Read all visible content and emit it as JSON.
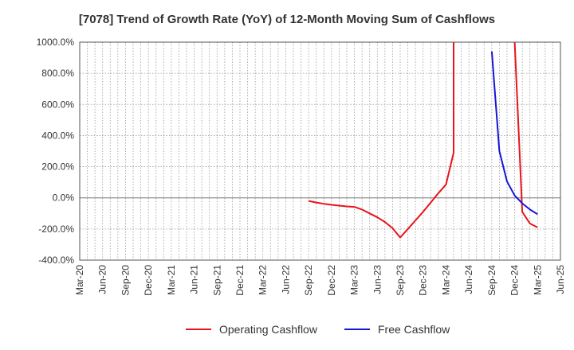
{
  "chart_data": {
    "type": "line",
    "title": "[7078]  Trend of Growth Rate (YoY) of 12-Month Moving Sum of Cashflows",
    "xlabel": "",
    "ylabel": "",
    "ylim": [
      -400,
      1000
    ],
    "grid": true,
    "legend_position": "bottom",
    "y_ticks": [
      "1000.0%",
      "800.0%",
      "600.0%",
      "400.0%",
      "200.0%",
      "0.0%",
      "-200.0%",
      "-400.0%"
    ],
    "y_tick_values": [
      1000,
      800,
      600,
      400,
      200,
      0,
      -200,
      -400
    ],
    "x_ticks": [
      "Mar-20",
      "Jun-20",
      "Sep-20",
      "Dec-20",
      "Mar-21",
      "Jun-21",
      "Sep-21",
      "Dec-21",
      "Mar-22",
      "Jun-22",
      "Sep-22",
      "Dec-22",
      "Mar-23",
      "Jun-23",
      "Sep-23",
      "Dec-23",
      "Mar-24",
      "Jun-24",
      "Sep-24",
      "Dec-24",
      "Mar-25",
      "Jun-25"
    ],
    "x_months": [
      "2020-03",
      "2020-04",
      "2020-05",
      "2020-06",
      "2020-07",
      "2020-08",
      "2020-09",
      "2020-10",
      "2020-11",
      "2020-12",
      "2021-01",
      "2021-02",
      "2021-03",
      "2021-04",
      "2021-05",
      "2021-06",
      "2021-07",
      "2021-08",
      "2021-09",
      "2021-10",
      "2021-11",
      "2021-12",
      "2022-01",
      "2022-02",
      "2022-03",
      "2022-04",
      "2022-05",
      "2022-06",
      "2022-07",
      "2022-08",
      "2022-09",
      "2022-10",
      "2022-11",
      "2022-12",
      "2023-01",
      "2023-02",
      "2023-03",
      "2023-04",
      "2023-05",
      "2023-06",
      "2023-07",
      "2023-08",
      "2023-09",
      "2023-10",
      "2023-11",
      "2023-12",
      "2024-01",
      "2024-02",
      "2024-03",
      "2024-04",
      "2024-05",
      "2024-06",
      "2024-07",
      "2024-08",
      "2024-09",
      "2024-10",
      "2024-11",
      "2024-12",
      "2025-01",
      "2025-02",
      "2025-03",
      "2025-04",
      "2025-05",
      "2025-06"
    ],
    "series": [
      {
        "name": "Operating Cashflow",
        "color": "#e8141c",
        "points": [
          [
            "2022-09",
            -20
          ],
          [
            "2022-10",
            -30
          ],
          [
            "2022-11",
            -38
          ],
          [
            "2022-12",
            -45
          ],
          [
            "2023-01",
            -50
          ],
          [
            "2023-02",
            -55
          ],
          [
            "2023-03",
            -58
          ],
          [
            "2023-04",
            -75
          ],
          [
            "2023-05",
            -100
          ],
          [
            "2023-06",
            -125
          ],
          [
            "2023-07",
            -155
          ],
          [
            "2023-08",
            -195
          ],
          [
            "2023-09",
            -255
          ],
          [
            "2023-10",
            -200
          ],
          [
            "2023-11",
            -145
          ],
          [
            "2023-12",
            -90
          ],
          [
            "2024-01",
            -30
          ],
          [
            "2024-02",
            30
          ],
          [
            "2024-03",
            85
          ],
          [
            "2024-04",
            290
          ],
          [
            "2024-04",
            1000
          ],
          null,
          [
            "2024-12",
            1000
          ],
          [
            "2025-01",
            -90
          ],
          [
            "2025-02",
            -165
          ],
          [
            "2025-03",
            -190
          ]
        ]
      },
      {
        "name": "Free Cashflow",
        "color": "#1515d8",
        "points": [
          [
            "2024-09",
            940
          ],
          [
            "2024-10",
            300
          ],
          [
            "2024-11",
            105
          ],
          [
            "2024-12",
            15
          ],
          [
            "2025-01",
            -35
          ],
          [
            "2025-02",
            -75
          ],
          [
            "2025-03",
            -105
          ]
        ]
      }
    ]
  }
}
